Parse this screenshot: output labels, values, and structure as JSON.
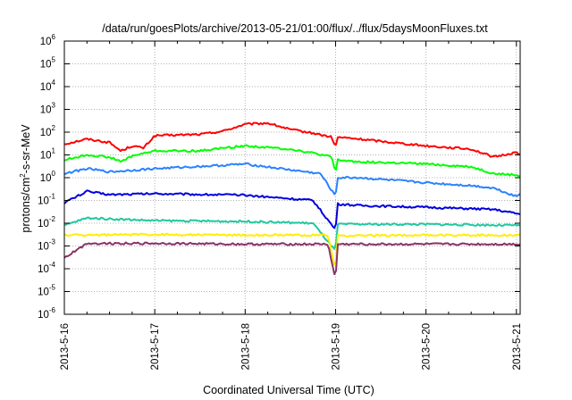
{
  "chart_data": {
    "type": "line",
    "title": "/data/run/goesPlots/archive/2013-05-21/01:00/flux/../flux/5daysMoonFluxes.txt",
    "xlabel": "Coordinated Universal Time (UTC)",
    "ylabel": "protons/cm2-s-sr-MeV",
    "ylabel_parts": {
      "base": "protons/cm",
      "sup": "2",
      "rest": "-s-sr-MeV"
    },
    "y_scale": "log",
    "ylim": [
      1e-06,
      1000000.0
    ],
    "y_ticks": [
      {
        "base": "10",
        "exp": "-6",
        "value": 1e-06
      },
      {
        "base": "10",
        "exp": "-5",
        "value": 1e-05
      },
      {
        "base": "10",
        "exp": "-4",
        "value": 0.0001
      },
      {
        "base": "10",
        "exp": "-3",
        "value": 0.001
      },
      {
        "base": "10",
        "exp": "-2",
        "value": 0.01
      },
      {
        "base": "10",
        "exp": "-1",
        "value": 0.1
      },
      {
        "base": "10",
        "exp": "0",
        "value": 1
      },
      {
        "base": "10",
        "exp": "1",
        "value": 10
      },
      {
        "base": "10",
        "exp": "2",
        "value": 100
      },
      {
        "base": "10",
        "exp": "3",
        "value": 1000
      },
      {
        "base": "10",
        "exp": "4",
        "value": 10000
      },
      {
        "base": "10",
        "exp": "5",
        "value": 100000
      },
      {
        "base": "10",
        "exp": "6",
        "value": 1000000
      }
    ],
    "xlim": [
      "2013-05-16",
      "2013-05-21 01:00"
    ],
    "x_ticks": [
      "2013-5-16",
      "2013-5-17",
      "2013-5-18",
      "2013-5-19",
      "2013-5-20",
      "2013-5-21"
    ],
    "grid": true,
    "legend": "none",
    "series": [
      {
        "color": "#ff0000",
        "x": [
          "2013-05-16 00:00",
          "2013-05-16 06:00",
          "2013-05-16 12:00",
          "2013-05-16 15:00",
          "2013-05-16 18:00",
          "2013-05-16 21:00",
          "2013-05-17 00:00",
          "2013-05-17 12:00",
          "2013-05-17 18:00",
          "2013-05-18 00:00",
          "2013-05-18 06:00",
          "2013-05-18 12:00",
          "2013-05-18 18:00",
          "2013-05-18 23:00",
          "2013-05-19 00:00",
          "2013-05-19 00:30",
          "2013-05-19 06:00",
          "2013-05-19 12:00",
          "2013-05-20 00:00",
          "2013-05-20 12:00",
          "2013-05-20 18:00",
          "2013-05-21 00:00",
          "2013-05-21 01:00"
        ],
        "values": [
          30,
          50,
          35,
          15,
          25,
          20,
          70,
          80,
          110,
          220,
          250,
          130,
          90,
          60,
          20,
          60,
          50,
          40,
          25,
          18,
          8,
          13,
          11
        ]
      },
      {
        "color": "#00ff00",
        "x": [
          "2013-05-16 00:00",
          "2013-05-16 06:00",
          "2013-05-16 12:00",
          "2013-05-16 15:00",
          "2013-05-16 18:00",
          "2013-05-17 00:00",
          "2013-05-17 12:00",
          "2013-05-17 18:00",
          "2013-05-18 00:00",
          "2013-05-18 12:00",
          "2013-05-18 18:00",
          "2013-05-18 23:00",
          "2013-05-19 00:00",
          "2013-05-19 00:30",
          "2013-05-19 06:00",
          "2013-05-20 00:00",
          "2013-05-20 12:00",
          "2013-05-20 18:00",
          "2013-05-21 00:00",
          "2013-05-21 01:00"
        ],
        "values": [
          6,
          10,
          8,
          5,
          9,
          15,
          15,
          20,
          25,
          18,
          12,
          8,
          1.5,
          6,
          5,
          4,
          3,
          1.5,
          1.3,
          1.2
        ]
      },
      {
        "color": "#2a83ff",
        "x": [
          "2013-05-16 00:00",
          "2013-05-16 06:00",
          "2013-05-16 12:00",
          "2013-05-17 00:00",
          "2013-05-17 18:00",
          "2013-05-18 00:00",
          "2013-05-18 12:00",
          "2013-05-18 20:00",
          "2013-05-19 00:00",
          "2013-05-19 00:30",
          "2013-05-19 06:00",
          "2013-05-20 00:00",
          "2013-05-20 12:00",
          "2013-05-20 18:00",
          "2013-05-21 00:00",
          "2013-05-21 01:00"
        ],
        "values": [
          1.5,
          2.5,
          1.8,
          2.5,
          3.5,
          4,
          2.2,
          1.5,
          0.15,
          1.0,
          1.0,
          0.6,
          0.45,
          0.35,
          0.15,
          0.2
        ]
      },
      {
        "color": "#0000dd",
        "x": [
          "2013-05-16 00:00",
          "2013-05-16 06:00",
          "2013-05-16 12:00",
          "2013-05-17 00:00",
          "2013-05-18 00:00",
          "2013-05-18 18:00",
          "2013-05-19 00:00",
          "2013-05-19 00:30",
          "2013-05-19 06:00",
          "2013-05-20 00:00",
          "2013-05-20 18:00",
          "2013-05-21 01:00"
        ],
        "values": [
          0.08,
          0.25,
          0.18,
          0.2,
          0.17,
          0.1,
          0.005,
          0.07,
          0.06,
          0.05,
          0.04,
          0.025
        ]
      },
      {
        "color": "#20c8a0",
        "x": [
          "2013-05-16 00:00",
          "2013-05-16 06:00",
          "2013-05-17 00:00",
          "2013-05-18 00:00",
          "2013-05-18 18:00",
          "2013-05-19 00:00",
          "2013-05-19 00:30",
          "2013-05-20 00:00",
          "2013-05-21 01:00"
        ],
        "values": [
          0.008,
          0.017,
          0.013,
          0.012,
          0.01,
          0.0006,
          0.009,
          0.009,
          0.008
        ]
      },
      {
        "color": "#ffee00",
        "x": [
          "2013-05-16 00:00",
          "2013-05-17 00:00",
          "2013-05-18 00:00",
          "2013-05-18 22:00",
          "2013-05-19 00:00",
          "2013-05-19 00:30",
          "2013-05-20 00:00",
          "2013-05-21 01:00"
        ],
        "values": [
          0.003,
          0.0032,
          0.003,
          0.003,
          8e-05,
          0.0028,
          0.003,
          0.003
        ]
      },
      {
        "color": "#883366",
        "x": [
          "2013-05-16 00:00",
          "2013-05-16 06:00",
          "2013-05-17 00:00",
          "2013-05-18 00:00",
          "2013-05-18 22:00",
          "2013-05-19 00:00",
          "2013-05-19 00:30",
          "2013-05-20 00:00",
          "2013-05-21 01:00"
        ],
        "values": [
          0.0003,
          0.0013,
          0.0013,
          0.0012,
          0.0012,
          3e-05,
          0.0012,
          0.0012,
          0.0012
        ]
      }
    ]
  }
}
